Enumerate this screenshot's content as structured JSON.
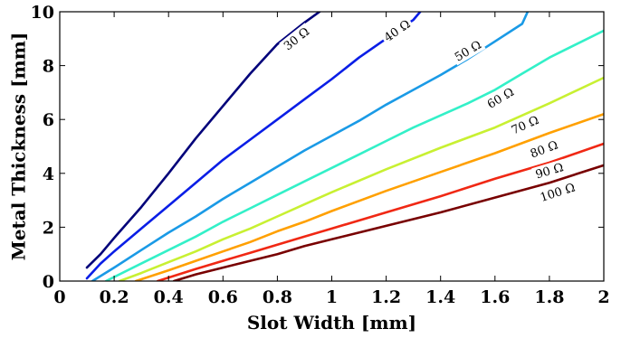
{
  "chart_data": {
    "type": "line",
    "title": "",
    "xlabel": "Slot Width [mm]",
    "ylabel": "Metal Thickness [mm]",
    "xlim": [
      0,
      2
    ],
    "ylim": [
      0,
      10
    ],
    "xticks": [
      0,
      0.2,
      0.4,
      0.6,
      0.8,
      1,
      1.2,
      1.4,
      1.6,
      1.8,
      2
    ],
    "xtick_labels": [
      "0",
      "0.2",
      "0.4",
      "0.6",
      "0.8",
      "1",
      "1.2",
      "1.4",
      "1.6",
      "1.8",
      "2"
    ],
    "yticks": [
      0,
      2,
      4,
      6,
      8,
      10
    ],
    "ytick_labels": [
      "0",
      "2",
      "4",
      "6",
      "8",
      "10"
    ],
    "grid": false,
    "legend": "none",
    "series": [
      {
        "label": "30 Ω",
        "color": "#00007a",
        "label_at": {
          "x": 0.87,
          "y": 9.0
        },
        "x": [
          0.1,
          0.15,
          0.2,
          0.3,
          0.4,
          0.5,
          0.6,
          0.7,
          0.8,
          0.9,
          0.955
        ],
        "y": [
          0.5,
          1.0,
          1.6,
          2.75,
          4.0,
          5.3,
          6.5,
          7.7,
          8.8,
          9.6,
          10.0
        ]
      },
      {
        "label": "40 Ω",
        "color": "#0a1ee6",
        "label_at": {
          "x": 1.24,
          "y": 9.3
        },
        "x": [
          0.1,
          0.15,
          0.2,
          0.3,
          0.4,
          0.5,
          0.6,
          0.7,
          0.8,
          0.9,
          1.0,
          1.1,
          1.2,
          1.3,
          1.325
        ],
        "y": [
          0.1,
          0.65,
          1.1,
          1.95,
          2.8,
          3.65,
          4.5,
          5.25,
          6.0,
          6.75,
          7.5,
          8.3,
          9.0,
          9.7,
          10.0
        ]
      },
      {
        "label": "50 Ω",
        "color": "#1a9ae6",
        "label_at": {
          "x": 1.5,
          "y": 8.55
        },
        "x": [
          0.12,
          0.2,
          0.3,
          0.4,
          0.5,
          0.6,
          0.7,
          0.8,
          0.9,
          1.0,
          1.1,
          1.2,
          1.3,
          1.4,
          1.5,
          1.6,
          1.7,
          1.72
        ],
        "y": [
          0.0,
          0.5,
          1.15,
          1.8,
          2.4,
          3.05,
          3.65,
          4.25,
          4.85,
          5.4,
          5.95,
          6.55,
          7.1,
          7.65,
          8.25,
          8.9,
          9.55,
          10.0
        ]
      },
      {
        "label": "60 Ω",
        "color": "#33f0c8",
        "label_at": {
          "x": 1.62,
          "y": 6.8
        },
        "x": [
          0.17,
          0.3,
          0.4,
          0.5,
          0.6,
          0.7,
          0.8,
          0.9,
          1.0,
          1.1,
          1.2,
          1.3,
          1.4,
          1.5,
          1.6,
          1.7,
          1.8,
          1.9,
          2.0
        ],
        "y": [
          0.0,
          0.65,
          1.15,
          1.65,
          2.2,
          2.7,
          3.2,
          3.7,
          4.2,
          4.7,
          5.2,
          5.7,
          6.15,
          6.6,
          7.1,
          7.7,
          8.3,
          8.8,
          9.3
        ]
      },
      {
        "label": "70 Ω",
        "color": "#c8f032",
        "label_at": {
          "x": 1.71,
          "y": 5.8
        },
        "x": [
          0.22,
          0.3,
          0.4,
          0.5,
          0.6,
          0.7,
          0.8,
          0.9,
          1.0,
          1.2,
          1.4,
          1.6,
          1.8,
          2.0
        ],
        "y": [
          0.0,
          0.3,
          0.7,
          1.1,
          1.55,
          1.95,
          2.4,
          2.85,
          3.3,
          4.15,
          4.95,
          5.7,
          6.6,
          7.55
        ]
      },
      {
        "label": "80 Ω",
        "color": "#ffa000",
        "label_at": {
          "x": 1.78,
          "y": 4.9
        },
        "x": [
          0.28,
          0.4,
          0.5,
          0.6,
          0.7,
          0.8,
          0.9,
          1.0,
          1.2,
          1.4,
          1.6,
          1.8,
          2.0
        ],
        "y": [
          0.0,
          0.4,
          0.75,
          1.1,
          1.45,
          1.85,
          2.2,
          2.6,
          3.35,
          4.05,
          4.75,
          5.5,
          6.2
        ]
      },
      {
        "label": "90 Ω",
        "color": "#f02814",
        "label_at": {
          "x": 1.8,
          "y": 4.1
        },
        "x": [
          0.36,
          0.5,
          0.6,
          0.7,
          0.8,
          0.9,
          1.0,
          1.2,
          1.4,
          1.6,
          1.8,
          2.0
        ],
        "y": [
          0.0,
          0.45,
          0.75,
          1.05,
          1.35,
          1.65,
          1.95,
          2.55,
          3.15,
          3.8,
          4.4,
          5.1
        ]
      },
      {
        "label": "100 Ω",
        "color": "#780000",
        "label_at": {
          "x": 1.83,
          "y": 3.3
        },
        "x": [
          0.42,
          0.5,
          0.6,
          0.7,
          0.8,
          0.9,
          1.0,
          1.2,
          1.4,
          1.6,
          1.8,
          2.0
        ],
        "y": [
          0.0,
          0.25,
          0.5,
          0.75,
          1.0,
          1.3,
          1.55,
          2.05,
          2.55,
          3.1,
          3.65,
          4.3
        ]
      }
    ]
  }
}
